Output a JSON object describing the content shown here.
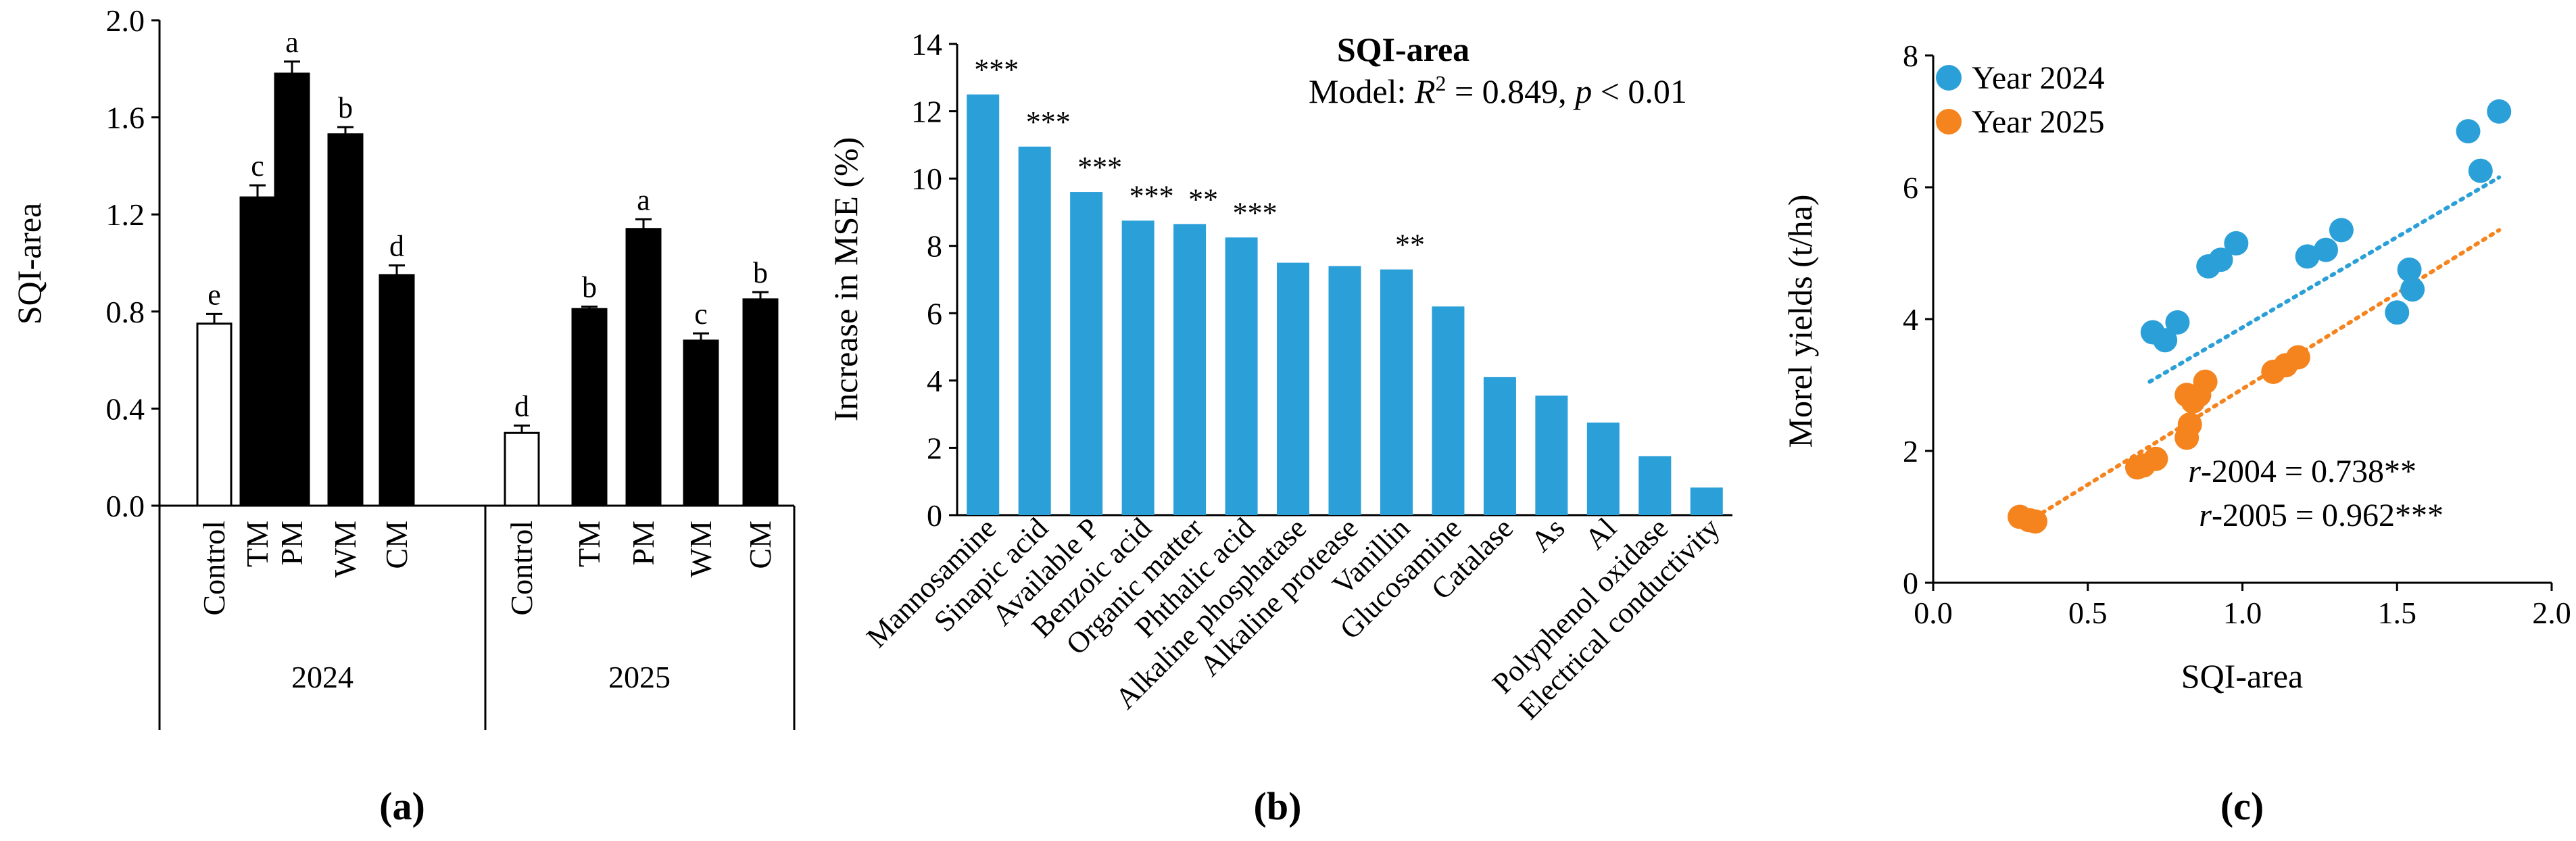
{
  "panel_labels": [
    "(a)",
    "(b)",
    "(c)"
  ],
  "chart_data": [
    {
      "type": "bar",
      "panel": "a",
      "ylabel": "SQI-area",
      "ylim": [
        0,
        2.0
      ],
      "yticks": [
        "0.0",
        "0.4",
        "0.8",
        "1.2",
        "1.6",
        "2.0"
      ],
      "groups": [
        {
          "year": "2024",
          "categories": [
            "Control",
            "TM",
            "PM",
            "WM",
            "CM"
          ],
          "values": [
            0.75,
            1.27,
            1.78,
            1.53,
            0.95
          ],
          "errors": [
            0.04,
            0.05,
            0.05,
            0.03,
            0.04
          ],
          "letters": [
            "e",
            "c",
            "a",
            "b",
            "d"
          ]
        },
        {
          "year": "2025",
          "categories": [
            "Control",
            "TM",
            "PM",
            "WM",
            "CM"
          ],
          "values": [
            0.3,
            0.81,
            1.14,
            0.68,
            0.85
          ],
          "errors": [
            0.03,
            0.01,
            0.04,
            0.03,
            0.03
          ],
          "letters": [
            "d",
            "b",
            "a",
            "c",
            "b"
          ]
        }
      ],
      "colors": {
        "control": "#ffffff",
        "treatment": "#000000"
      }
    },
    {
      "type": "bar",
      "panel": "b",
      "title": "SQI-area",
      "annotation": {
        "prefix": "Model: ",
        "r2_symbol": "R",
        "r2_exp": "2",
        "rest": " = 0.849, ",
        "p_symbol": "p",
        "p_rest": " < 0.01"
      },
      "ylabel": "Increase in MSE (%)",
      "ylim": [
        0,
        14
      ],
      "yticks": [
        "0",
        "2",
        "4",
        "6",
        "8",
        "10",
        "12",
        "14"
      ],
      "categories": [
        "Mannosamine",
        "Sinapic acid",
        "Available P",
        "Benzoic acid",
        "Organic matter",
        "Phthalic acid",
        "Alkaline phosphatase",
        "Alkaline protease",
        "Vanillin",
        "Glucosamine",
        "Catalase",
        "As",
        "Al",
        "Polyphenol oxidase",
        "Electrical conductivity"
      ],
      "values": [
        12.5,
        10.95,
        9.6,
        8.75,
        8.65,
        8.25,
        7.5,
        7.4,
        7.3,
        6.2,
        4.1,
        3.55,
        2.75,
        1.75,
        0.82
      ],
      "significance": [
        "***",
        "***",
        "***",
        "***",
        "**",
        "***",
        "",
        "",
        "**",
        "",
        "",
        "",
        "",
        "",
        ""
      ],
      "color": "#2a9fd8"
    },
    {
      "type": "scatter",
      "panel": "c",
      "xlabel": "SQI-area",
      "ylabel": "Morel yields (t/ha)",
      "xlim": [
        0,
        2.0
      ],
      "ylim": [
        0,
        8
      ],
      "xticks": [
        "0.0",
        "0.5",
        "1.0",
        "1.5",
        "2.0"
      ],
      "yticks": [
        "0",
        "2",
        "4",
        "6",
        "8"
      ],
      "series": [
        {
          "name": "Year 2024",
          "color": "#2a9fd8",
          "x": [
            0.71,
            0.75,
            0.79,
            0.89,
            0.93,
            0.98,
            1.21,
            1.27,
            1.32,
            1.5,
            1.54,
            1.55,
            1.73,
            1.77,
            1.83
          ],
          "y": [
            3.8,
            3.68,
            3.95,
            4.8,
            4.9,
            5.15,
            4.95,
            5.05,
            5.35,
            4.1,
            4.75,
            4.45,
            6.85,
            6.25,
            7.15
          ],
          "trend": [
            [
              0.7,
              3.05
            ],
            [
              1.83,
              6.15
            ]
          ]
        },
        {
          "name": "Year 2025",
          "color": "#f5841f",
          "x": [
            0.28,
            0.31,
            0.33,
            0.66,
            0.68,
            0.72,
            0.82,
            0.83,
            0.82,
            0.84,
            0.86,
            0.88,
            1.1,
            1.14,
            1.18
          ],
          "y": [
            1.0,
            0.95,
            0.93,
            1.75,
            1.78,
            1.88,
            2.2,
            2.4,
            2.85,
            2.75,
            2.85,
            3.05,
            3.2,
            3.3,
            3.42
          ],
          "trend": [
            [
              0.28,
              0.85
            ],
            [
              1.83,
              5.35
            ]
          ]
        }
      ],
      "stats": [
        {
          "symbol": "r",
          "label": "-2004 = 0.738**"
        },
        {
          "symbol": "r",
          "label": "-2005 = 0.962***"
        }
      ]
    }
  ]
}
